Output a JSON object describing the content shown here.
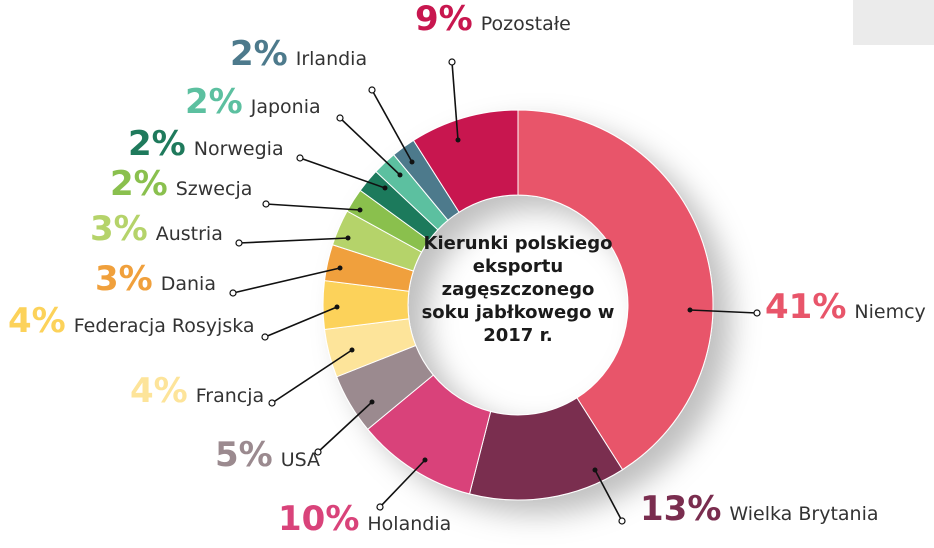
{
  "chart_data": {
    "type": "donut",
    "title": "Kierunki polskiego eksportu zagęszczonego soku jabłkowego w 2017 r.",
    "categories": [
      "Niemcy",
      "Wielka Brytania",
      "Holandia",
      "USA",
      "Francja",
      "Federacja Rosyjska",
      "Dania",
      "Austria",
      "Szwecja",
      "Norwegia",
      "Japonia",
      "Irlandia",
      "Pozostałe"
    ],
    "values": [
      41,
      13,
      10,
      5,
      4,
      4,
      3,
      3,
      2,
      2,
      2,
      2,
      9
    ],
    "value_labels": [
      "41%",
      "13%",
      "10%",
      "5%",
      "4%",
      "4%",
      "3%",
      "3%",
      "2%",
      "2%",
      "2%",
      "2%",
      "9%"
    ],
    "colors": [
      "#e8556a",
      "#7a2d4f",
      "#d9437a",
      "#9b8a8f",
      "#fde49a",
      "#fcd25a",
      "#f0a03c",
      "#b5d36a",
      "#8ac04e",
      "#1f7a5c",
      "#5cc0a0",
      "#4d7a8c",
      "#c8174f"
    ]
  }
}
